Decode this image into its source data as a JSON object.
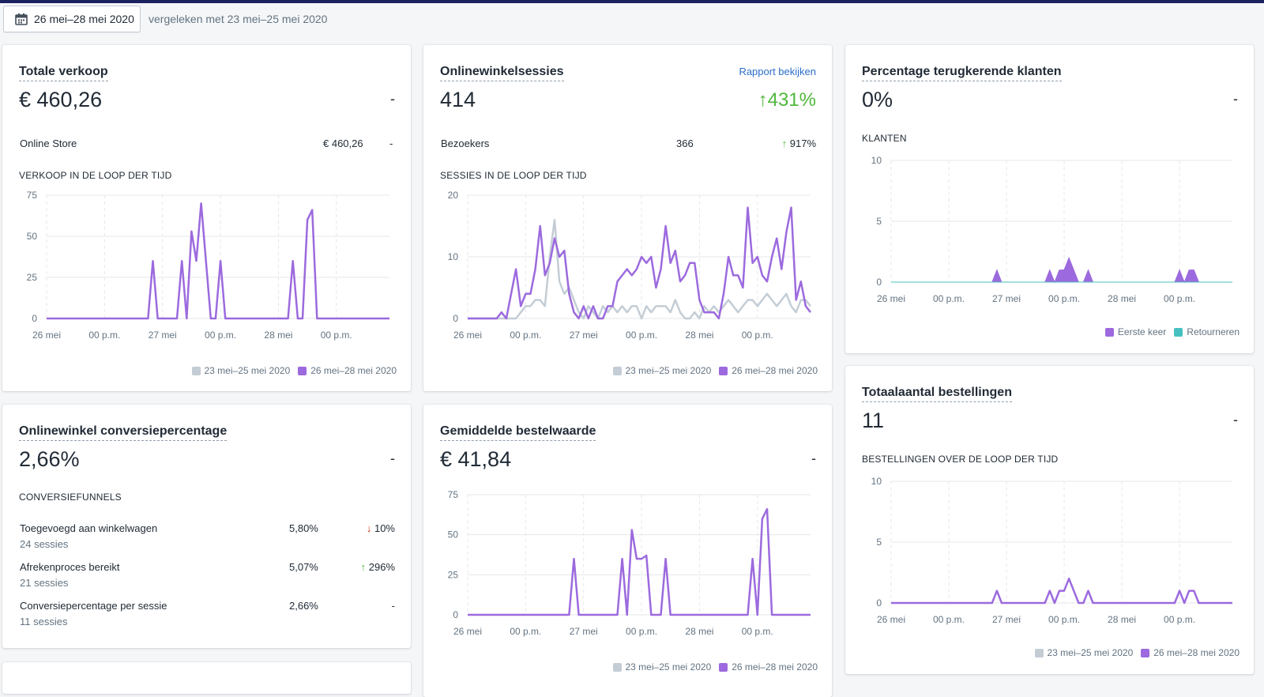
{
  "header": {
    "date_range": "26 mei–28 mei 2020",
    "compare": "vergeleken met 23 mei–25 mei 2020"
  },
  "colors": {
    "current": "#9c6ade",
    "previous": "#c4cdd5",
    "returning": "#47c1bf",
    "up": "#50b83c",
    "down": "#de3618"
  },
  "x_ticks": [
    "26 mei",
    "00 p.m.",
    "27 mei",
    "00 p.m.",
    "28 mei",
    "00 p.m."
  ],
  "legend": {
    "previous": "23 mei–25 mei 2020",
    "current": "26 mei–28 mei 2020"
  },
  "cards": {
    "sales": {
      "title": "Totale verkoop",
      "value": "€ 460,26",
      "change": "-",
      "row_label": "Online Store",
      "row_value": "€ 460,26",
      "row_change": "-",
      "chart_label": "VERKOOP IN DE LOOP DER TIJD"
    },
    "sessions": {
      "title": "Onlinewinkelsessies",
      "link": "Rapport bekijken",
      "value": "414",
      "change": "431%",
      "row_label": "Bezoekers",
      "row_value": "366",
      "row_change": "917%",
      "chart_label": "SESSIES IN DE LOOP DER TIJD"
    },
    "returning": {
      "title": "Percentage terugkerende klanten",
      "value": "0%",
      "change": "-",
      "chart_label": "KLANTEN",
      "legend_first": "Eerste keer",
      "legend_returning": "Retourneren"
    },
    "conversion": {
      "title": "Onlinewinkel conversiepercentage",
      "value": "2,66%",
      "change": "-",
      "section": "CONVERSIEFUNNELS",
      "rows": [
        {
          "label": "Toegevoegd aan winkelwagen",
          "sub": "24 sessies",
          "value": "5,80%",
          "change": "10%"
        },
        {
          "label": "Afrekenproces bereikt",
          "sub": "21 sessies",
          "value": "5,07%",
          "change": "296%"
        },
        {
          "label": "Conversiepercentage per sessie",
          "sub": "11 sessies",
          "value": "2,66%",
          "change": "-"
        }
      ]
    },
    "aov": {
      "title": "Gemiddelde bestelwaarde",
      "value": "€ 41,84",
      "change": "-"
    },
    "orders": {
      "title": "Totaalaantal bestellingen",
      "value": "11",
      "change": "-",
      "chart_label": "BESTELLINGEN OVER DE LOOP DER TIJD"
    }
  },
  "chart_data": [
    {
      "id": "sales",
      "type": "line",
      "ylim": [
        0,
        75
      ],
      "yticks": [
        0,
        25,
        50,
        75
      ],
      "series": [
        {
          "name": "26 mei–28 mei 2020",
          "points": [
            [
              0,
              0
            ],
            [
              21,
              0
            ],
            [
              22,
              35
            ],
            [
              23,
              0
            ],
            [
              27,
              0
            ],
            [
              28,
              35
            ],
            [
              29,
              0
            ],
            [
              30,
              53
            ],
            [
              31,
              35
            ],
            [
              32,
              70
            ],
            [
              33,
              35
            ],
            [
              34,
              0
            ],
            [
              35,
              0
            ],
            [
              36,
              35
            ],
            [
              37,
              0
            ],
            [
              50,
              0
            ],
            [
              51,
              35
            ],
            [
              52,
              0
            ],
            [
              53,
              0
            ],
            [
              54,
              60
            ],
            [
              55,
              66
            ],
            [
              56,
              0
            ],
            [
              71,
              0
            ]
          ]
        }
      ]
    },
    {
      "id": "sessions",
      "type": "line",
      "ylim": [
        0,
        20
      ],
      "yticks": [
        0,
        10,
        20
      ],
      "series": [
        {
          "name": "23 mei–25 mei 2020",
          "points": [
            [
              0,
              0
            ],
            [
              10,
              0
            ],
            [
              11,
              1
            ],
            [
              12,
              2
            ],
            [
              13,
              2
            ],
            [
              14,
              3
            ],
            [
              15,
              3
            ],
            [
              16,
              2
            ],
            [
              17,
              10
            ],
            [
              18,
              16
            ],
            [
              19,
              6
            ],
            [
              20,
              4
            ],
            [
              21,
              5
            ],
            [
              22,
              3
            ],
            [
              23,
              1
            ],
            [
              24,
              0
            ],
            [
              25,
              2
            ],
            [
              26,
              1
            ],
            [
              27,
              0
            ],
            [
              28,
              2
            ],
            [
              29,
              1
            ],
            [
              30,
              2
            ],
            [
              31,
              1
            ],
            [
              32,
              2
            ],
            [
              33,
              1
            ],
            [
              34,
              2
            ],
            [
              35,
              2
            ],
            [
              36,
              0
            ],
            [
              37,
              2
            ],
            [
              38,
              1
            ],
            [
              39,
              2
            ],
            [
              40,
              2
            ],
            [
              41,
              2
            ],
            [
              42,
              1
            ],
            [
              43,
              3
            ],
            [
              44,
              1
            ],
            [
              45,
              0
            ],
            [
              46,
              0
            ],
            [
              47,
              1
            ],
            [
              48,
              0
            ],
            [
              49,
              2
            ],
            [
              50,
              1
            ],
            [
              51,
              2
            ],
            [
              52,
              1
            ],
            [
              53,
              2
            ],
            [
              54,
              3
            ],
            [
              55,
              2
            ],
            [
              56,
              1
            ],
            [
              57,
              2
            ],
            [
              58,
              3
            ],
            [
              59,
              3
            ],
            [
              60,
              2
            ],
            [
              61,
              3
            ],
            [
              62,
              4
            ],
            [
              63,
              3
            ],
            [
              64,
              2
            ],
            [
              65,
              3
            ],
            [
              66,
              4
            ],
            [
              67,
              2
            ],
            [
              68,
              1
            ],
            [
              69,
              3
            ],
            [
              70,
              3
            ],
            [
              71,
              2
            ]
          ]
        },
        {
          "name": "26 mei–28 mei 2020",
          "points": [
            [
              0,
              0
            ],
            [
              6,
              0
            ],
            [
              7,
              1
            ],
            [
              8,
              0
            ],
            [
              9,
              4
            ],
            [
              10,
              8
            ],
            [
              11,
              2
            ],
            [
              12,
              4
            ],
            [
              13,
              4
            ],
            [
              14,
              8
            ],
            [
              15,
              15
            ],
            [
              16,
              7
            ],
            [
              17,
              9
            ],
            [
              18,
              13
            ],
            [
              19,
              10
            ],
            [
              20,
              11
            ],
            [
              21,
              4
            ],
            [
              22,
              1
            ],
            [
              23,
              0
            ],
            [
              24,
              2
            ],
            [
              25,
              0
            ],
            [
              26,
              2
            ],
            [
              27,
              0
            ],
            [
              28,
              0
            ],
            [
              29,
              2
            ],
            [
              30,
              2
            ],
            [
              31,
              6
            ],
            [
              32,
              7
            ],
            [
              33,
              8
            ],
            [
              34,
              7
            ],
            [
              35,
              8
            ],
            [
              36,
              10
            ],
            [
              37,
              9
            ],
            [
              38,
              10
            ],
            [
              39,
              5
            ],
            [
              40,
              8
            ],
            [
              41,
              15
            ],
            [
              42,
              9
            ],
            [
              43,
              11
            ],
            [
              44,
              6
            ],
            [
              45,
              7
            ],
            [
              46,
              9
            ],
            [
              47,
              9
            ],
            [
              48,
              3
            ],
            [
              49,
              1
            ],
            [
              50,
              1
            ],
            [
              51,
              1
            ],
            [
              52,
              0
            ],
            [
              53,
              4
            ],
            [
              54,
              10
            ],
            [
              55,
              7
            ],
            [
              56,
              7
            ],
            [
              57,
              5
            ],
            [
              58,
              18
            ],
            [
              59,
              9
            ],
            [
              60,
              10
            ],
            [
              61,
              7
            ],
            [
              62,
              6
            ],
            [
              63,
              10
            ],
            [
              64,
              13
            ],
            [
              65,
              8
            ],
            [
              66,
              14
            ],
            [
              67,
              18
            ],
            [
              68,
              3
            ],
            [
              69,
              6
            ],
            [
              70,
              2
            ],
            [
              71,
              1
            ]
          ]
        }
      ]
    },
    {
      "id": "returning",
      "type": "area",
      "ylim": [
        0,
        10
      ],
      "yticks": [
        0,
        5,
        10
      ],
      "series": [
        {
          "name": "Eerste keer",
          "points": [
            [
              0,
              0
            ],
            [
              21,
              0
            ],
            [
              22,
              1
            ],
            [
              23,
              0
            ],
            [
              32,
              0
            ],
            [
              33,
              1
            ],
            [
              34,
              0
            ],
            [
              35,
              1
            ],
            [
              36,
              1
            ],
            [
              37,
              2
            ],
            [
              38,
              1
            ],
            [
              39,
              0
            ],
            [
              40,
              0
            ],
            [
              41,
              1
            ],
            [
              42,
              0
            ],
            [
              59,
              0
            ],
            [
              60,
              1
            ],
            [
              61,
              0
            ],
            [
              62,
              1
            ],
            [
              63,
              1
            ],
            [
              64,
              0
            ],
            [
              71,
              0
            ]
          ]
        },
        {
          "name": "Retourneren",
          "points": [
            [
              0,
              0
            ],
            [
              71,
              0
            ]
          ]
        }
      ]
    },
    {
      "id": "aov",
      "type": "line",
      "ylim": [
        0,
        75
      ],
      "yticks": [
        0,
        25,
        50,
        75
      ],
      "series": [
        {
          "name": "26 mei–28 mei 2020",
          "points": [
            [
              0,
              0
            ],
            [
              21,
              0
            ],
            [
              22,
              35
            ],
            [
              23,
              0
            ],
            [
              31,
              0
            ],
            [
              32,
              35
            ],
            [
              33,
              0
            ],
            [
              34,
              53
            ],
            [
              35,
              35
            ],
            [
              36,
              35
            ],
            [
              37,
              37
            ],
            [
              38,
              0
            ],
            [
              40,
              0
            ],
            [
              41,
              35
            ],
            [
              42,
              0
            ],
            [
              58,
              0
            ],
            [
              59,
              35
            ],
            [
              60,
              0
            ],
            [
              61,
              60
            ],
            [
              62,
              66
            ],
            [
              63,
              0
            ],
            [
              71,
              0
            ]
          ]
        }
      ]
    },
    {
      "id": "orders",
      "type": "line",
      "ylim": [
        0,
        10
      ],
      "yticks": [
        0,
        5,
        10
      ],
      "series": [
        {
          "name": "26 mei–28 mei 2020",
          "points": [
            [
              0,
              0
            ],
            [
              21,
              0
            ],
            [
              22,
              1
            ],
            [
              23,
              0
            ],
            [
              32,
              0
            ],
            [
              33,
              1
            ],
            [
              34,
              0
            ],
            [
              35,
              1
            ],
            [
              36,
              1
            ],
            [
              37,
              2
            ],
            [
              38,
              1
            ],
            [
              39,
              0
            ],
            [
              40,
              0
            ],
            [
              41,
              1
            ],
            [
              42,
              0
            ],
            [
              59,
              0
            ],
            [
              60,
              1
            ],
            [
              61,
              0
            ],
            [
              62,
              1
            ],
            [
              63,
              1
            ],
            [
              64,
              0
            ],
            [
              71,
              0
            ]
          ]
        }
      ]
    }
  ]
}
